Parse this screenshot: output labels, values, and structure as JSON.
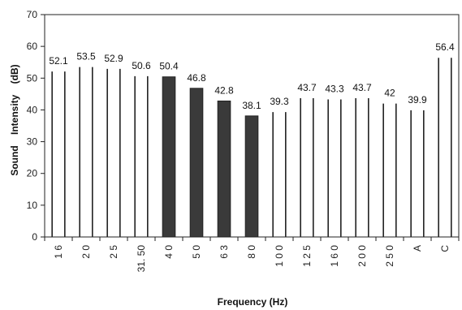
{
  "chart_data": {
    "type": "bar",
    "categories": [
      "16",
      "20",
      "25",
      "31.50",
      "40",
      "50",
      "63",
      "80",
      "100",
      "125",
      "160",
      "200",
      "250",
      "A",
      "C"
    ],
    "tick_labels": [
      "1 6",
      "2 0",
      "2 5",
      "31. 50",
      "4 0",
      "5 0",
      "6 3",
      "8 0",
      "1 0 0",
      "1 2 5",
      "1 6 0",
      "2 0 0",
      "2 5 0",
      "A",
      "C"
    ],
    "values": [
      52.1,
      53.5,
      52.9,
      50.6,
      50.4,
      46.8,
      42.8,
      38.1,
      39.3,
      43.7,
      43.3,
      43.7,
      42,
      39.9,
      56.4
    ],
    "data_labels": [
      "52.1",
      "53.5",
      "52.9",
      "50.6",
      "50.4",
      "46.8",
      "42.8",
      "38.1",
      "39.3",
      "43.7",
      "43.3",
      "43.7",
      "42",
      "39.9",
      "56.4"
    ],
    "highlighted": [
      false,
      false,
      false,
      false,
      true,
      true,
      true,
      true,
      false,
      false,
      false,
      false,
      false,
      false,
      false
    ],
    "xlabel": "Frequency (Hz)",
    "ylabel": "Sound    Intensity    (dB)",
    "ylim": [
      0,
      70
    ],
    "yticks": [
      "0",
      "10",
      "20",
      "30",
      "40",
      "50",
      "60",
      "70"
    ],
    "grid": false,
    "colors": {
      "filled_bar": "#3a3a3a",
      "outline": "#222222",
      "background": "#ffffff"
    }
  }
}
